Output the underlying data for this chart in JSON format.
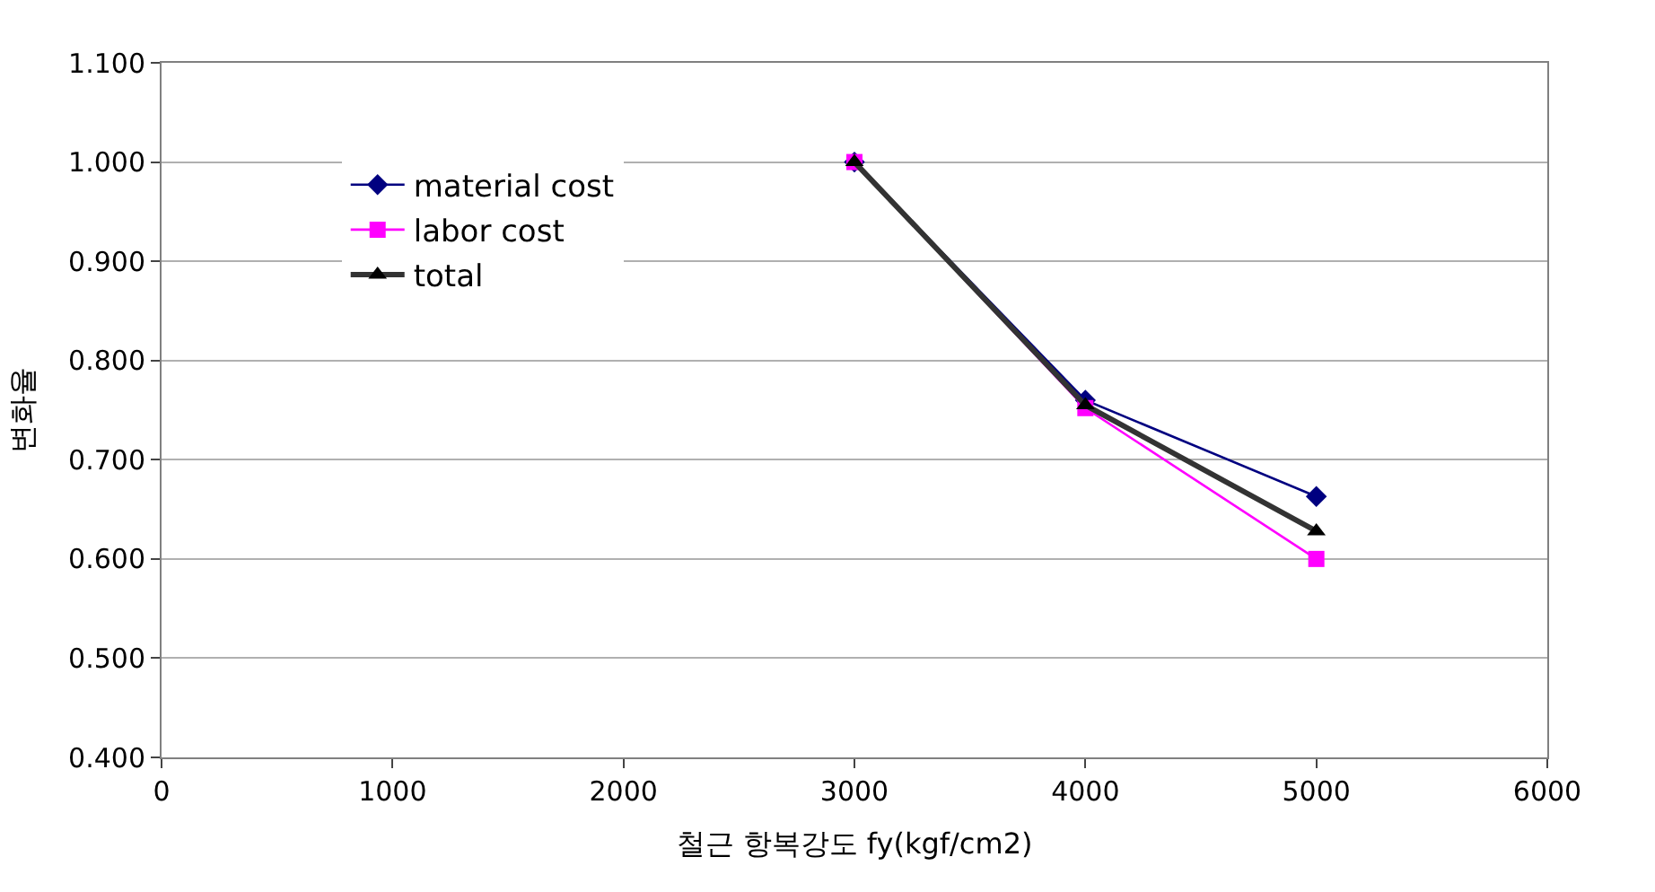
{
  "chart_data": {
    "type": "line",
    "xlabel": "철근 항복강도 fy(kgf/cm2)",
    "ylabel": "변화율",
    "x": [
      3000,
      4000,
      5000
    ],
    "series": [
      {
        "name": "material cost",
        "color": "#000080",
        "marker": "diamond",
        "values": [
          1.0,
          0.76,
          0.663
        ]
      },
      {
        "name": "labor cost",
        "color": "#ff00ff",
        "marker": "square",
        "values": [
          1.0,
          0.752,
          0.6
        ]
      },
      {
        "name": "total",
        "color": "#333333",
        "marker": "triangle",
        "values": [
          1.0,
          0.755,
          0.628
        ]
      }
    ],
    "xlim": [
      0,
      6000
    ],
    "xticks": [
      0,
      1000,
      2000,
      3000,
      4000,
      5000,
      6000
    ],
    "ylim": [
      0.4,
      1.1
    ],
    "yticks": [
      {
        "value": 0.4,
        "label": "0.400"
      },
      {
        "value": 0.5,
        "label": "0.500"
      },
      {
        "value": 0.6,
        "label": "0.600"
      },
      {
        "value": 0.7,
        "label": "0.700"
      },
      {
        "value": 0.8,
        "label": "0.800"
      },
      {
        "value": 0.9,
        "label": "0.900"
      },
      {
        "value": 1.0,
        "label": "1.000"
      },
      {
        "value": 1.1,
        "label": "1.100"
      }
    ],
    "grid": "y",
    "legend": "top left"
  }
}
